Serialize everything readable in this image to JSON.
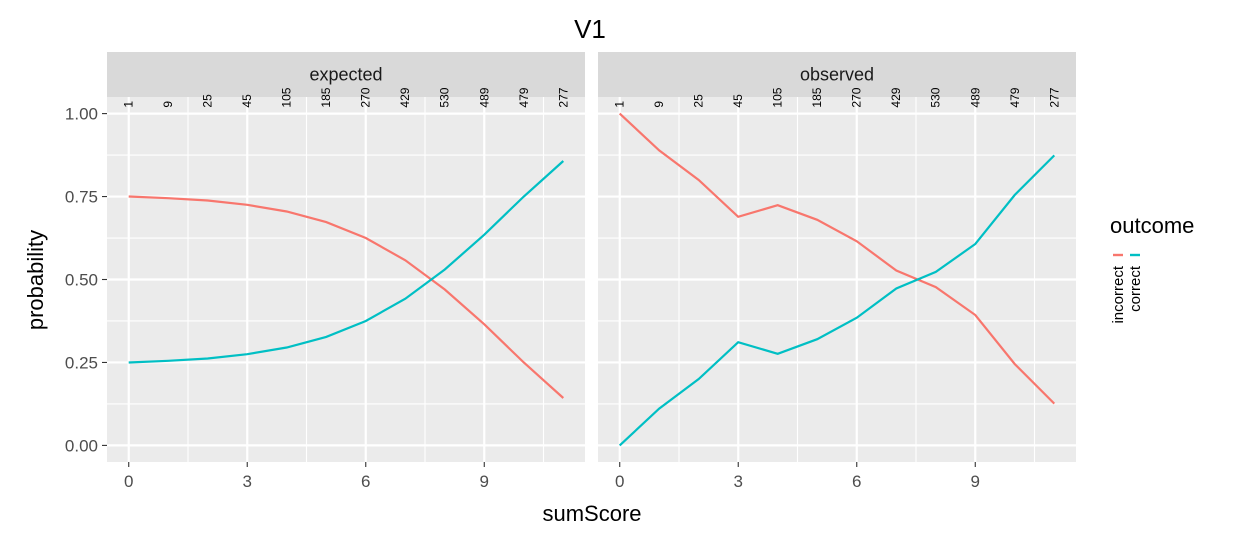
{
  "chart_data": {
    "type": "line",
    "title": "V1",
    "xlabel": "sumScore",
    "ylabel": "probability",
    "xlim": [
      0,
      11
    ],
    "ylim": [
      0,
      1
    ],
    "x_ticks": [
      "0",
      "3",
      "6",
      "9"
    ],
    "x_tick_values": [
      0,
      3,
      6,
      9
    ],
    "y_ticks": [
      "0.00",
      "0.25",
      "0.50",
      "0.75",
      "1.00"
    ],
    "y_tick_values": [
      0,
      0.25,
      0.5,
      0.75,
      1
    ],
    "grid": true,
    "legend": {
      "title": "outcome",
      "position": "right",
      "entries": [
        {
          "label": "incorrect",
          "color": "#F8766D"
        },
        {
          "label": "correct",
          "color": "#00BFC4"
        }
      ]
    },
    "x": [
      0,
      1,
      2,
      3,
      4,
      5,
      6,
      7,
      8,
      9,
      10,
      11
    ],
    "counts": [
      "1",
      "9",
      "25",
      "45",
      "105",
      "185",
      "270",
      "429",
      "530",
      "489",
      "479",
      "277"
    ],
    "panels": [
      {
        "name": "expected",
        "series": [
          {
            "name": "incorrect",
            "color": "#F8766D",
            "values": [
              0.75,
              0.745,
              0.738,
              0.725,
              0.705,
              0.673,
              0.625,
              0.558,
              0.47,
              0.365,
              0.25,
              0.143
            ]
          },
          {
            "name": "correct",
            "color": "#00BFC4",
            "values": [
              0.25,
              0.255,
              0.262,
              0.275,
              0.295,
              0.327,
              0.375,
              0.442,
              0.53,
              0.635,
              0.75,
              0.857
            ]
          }
        ]
      },
      {
        "name": "observed",
        "series": [
          {
            "name": "incorrect",
            "color": "#F8766D",
            "values": [
              1.0,
              0.889,
              0.8,
              0.689,
              0.724,
              0.68,
              0.615,
              0.527,
              0.477,
              0.393,
              0.245,
              0.126
            ]
          },
          {
            "name": "correct",
            "color": "#00BFC4",
            "values": [
              0.0,
              0.111,
              0.2,
              0.311,
              0.276,
              0.32,
              0.385,
              0.473,
              0.523,
              0.607,
              0.755,
              0.874
            ]
          }
        ]
      }
    ]
  }
}
